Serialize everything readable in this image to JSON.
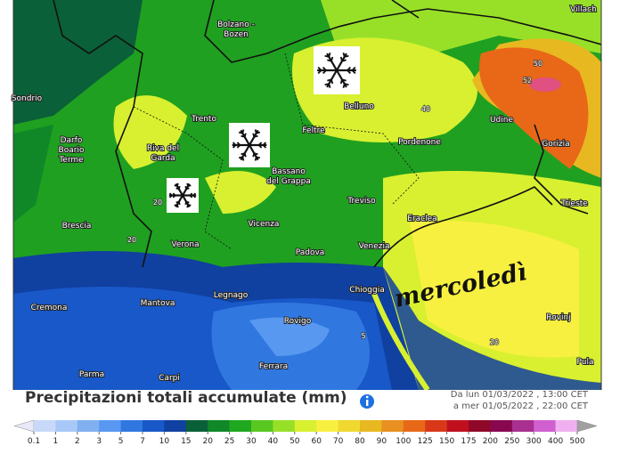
{
  "map": {
    "cities": [
      [
        "Villach"
      ],
      [
        "Bolzano -",
        "Bozen"
      ],
      [
        "Sondrio"
      ],
      [
        "Trento"
      ],
      [
        "Belluno"
      ],
      [
        "Udine"
      ],
      [
        "Feltre"
      ],
      [
        "Darfo",
        "Boario",
        "Terme"
      ],
      [
        "Riva del",
        "Garda"
      ],
      [
        "Pordenone"
      ],
      [
        "Gorizia"
      ],
      [
        "Bassano",
        "del Grappa"
      ],
      [
        "Treviso"
      ],
      [
        "Eraclea"
      ],
      [
        "Trieste"
      ],
      [
        "Brescia"
      ],
      [
        "Vicenza"
      ],
      [
        "Verona"
      ],
      [
        "Venezia"
      ],
      [
        "Padova"
      ],
      [
        "Legnago"
      ],
      [
        "Chioggia"
      ],
      [
        "Mantova"
      ],
      [
        "Cremona"
      ],
      [
        "Rovigo"
      ],
      [
        "Rovinj"
      ],
      [
        "Ferrara"
      ],
      [
        "Parma"
      ],
      [
        "Carpi"
      ],
      [
        "Pula"
      ]
    ],
    "contour_labels": [
      "20",
      "20",
      "40",
      "50",
      "52",
      "20",
      "5"
    ],
    "annotation": "mercoledì"
  },
  "legend": {
    "title": "Precipitazioni totali accumulate (mm)",
    "date_from": "Da lun 01/03/2022 , 13:00 CET",
    "date_to": "a mer 01/05/2022 , 22:00 CET",
    "ticks": [
      0.1,
      1,
      2,
      3,
      5,
      7,
      10,
      15,
      20,
      25,
      30,
      40,
      50,
      60,
      70,
      80,
      90,
      100,
      125,
      150,
      175,
      200,
      250,
      300,
      400,
      500
    ],
    "colors": [
      "#e8e8f8",
      "#c8d8f8",
      "#a8c8f8",
      "#80b0f0",
      "#5898f0",
      "#3078e0",
      "#1858c8",
      "#1040a0",
      "#0a6038",
      "#108828",
      "#20a820",
      "#58c820",
      "#98e028",
      "#d8f030",
      "#f8f040",
      "#f0d830",
      "#e8b820",
      "#e89020",
      "#e86818",
      "#d83818",
      "#c01020",
      "#900828",
      "#880850",
      "#a83090",
      "#d060d0",
      "#f0b0f0",
      "#a0a0a0"
    ]
  }
}
